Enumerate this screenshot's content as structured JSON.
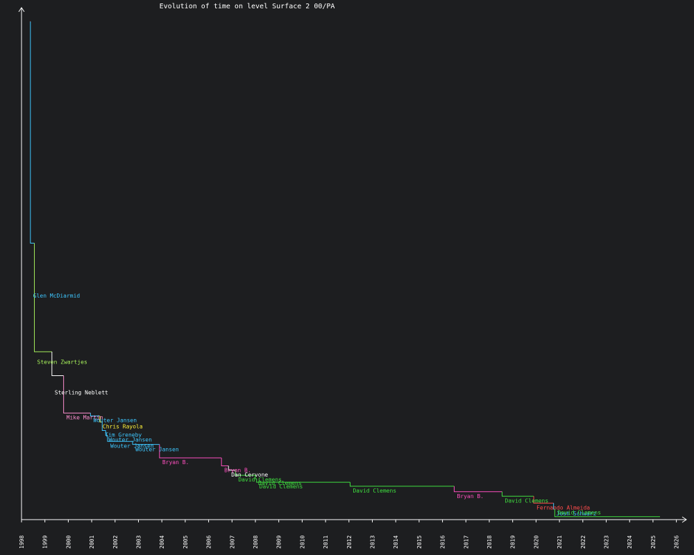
{
  "chart_data": {
    "type": "line",
    "title": "Evolution of time on level Surface 2 00/PA",
    "xlabel": "",
    "ylabel": "",
    "x_axis": {
      "start": 1998,
      "end": 2026,
      "tick_labels": [
        "1998",
        "1999",
        "2000",
        "2001",
        "2002",
        "2003",
        "2004",
        "2005",
        "2006",
        "2007",
        "2008",
        "2009",
        "2010",
        "2011",
        "2012",
        "2013",
        "2014",
        "2015",
        "2016",
        "2017",
        "2018",
        "2019",
        "2020",
        "2021",
        "2022",
        "2023",
        "2024",
        "2025",
        "2026"
      ]
    },
    "y_axis": {
      "tick_labels": [],
      "relative_values": true
    },
    "grid": false,
    "legend": "none",
    "series_end_date": 2025.3,
    "records": [
      {
        "date": 1998.36,
        "holder": "",
        "value": 100.0,
        "color": "#ff4b4b",
        "show_label": false
      },
      {
        "date": 1998.38,
        "holder": "Glen McDiarmid",
        "value": 55.5,
        "color": "#3ec7ff",
        "show_label": true
      },
      {
        "date": 1998.55,
        "holder": "Steven Zwartjes",
        "value": 33.7,
        "color": "#a6f05a",
        "show_label": true
      },
      {
        "date": 1999.3,
        "holder": "Sterling Neblett",
        "value": 28.9,
        "color": "#ffffff",
        "show_label": true
      },
      {
        "date": 1999.8,
        "holder": "Mike Martin",
        "value": 21.4,
        "color": "#ff8ecf",
        "show_label": true
      },
      {
        "date": 2000.95,
        "holder": "Wouter Jansen",
        "value": 20.8,
        "color": "#3ec7ff",
        "show_label": true
      },
      {
        "date": 2001.35,
        "holder": "Chris Rayola",
        "value": 19.6,
        "color": "#fff23a",
        "show_label": true
      },
      {
        "date": 2001.45,
        "holder": "Tim Greneby",
        "value": 17.9,
        "color": "#3ec7ff",
        "show_label": true
      },
      {
        "date": 2001.6,
        "holder": "Wouter Jansen",
        "value": 16.9,
        "color": "#3ec7ff",
        "show_label": true
      },
      {
        "date": 2001.68,
        "holder": "Wouter Jansen",
        "value": 15.7,
        "color": "#3ec7ff",
        "show_label": true
      },
      {
        "date": 2002.75,
        "holder": "Wouter Jansen",
        "value": 15.1,
        "color": "#3ec7ff",
        "show_label": true
      },
      {
        "date": 2003.9,
        "holder": "Bryan B.",
        "value": 12.4,
        "color": "#ff4fbf",
        "show_label": true
      },
      {
        "date": 2006.55,
        "holder": "Bryan B.",
        "value": 10.8,
        "color": "#ff4fbf",
        "show_label": true
      },
      {
        "date": 2006.85,
        "holder": "Dan Cervone",
        "value": 9.9,
        "color": "#ffffff",
        "show_label": true
      },
      {
        "date": 2007.15,
        "holder": "David Clemens",
        "value": 8.9,
        "color": "#3fe03f",
        "show_label": true
      },
      {
        "date": 2008.0,
        "holder": "David Clemens",
        "value": 8.2,
        "color": "#3fe03f",
        "show_label": true
      },
      {
        "date": 2008.05,
        "holder": "David Clemens",
        "value": 7.5,
        "color": "#3fe03f",
        "show_label": true
      },
      {
        "date": 2012.05,
        "holder": "David Clemens",
        "value": 6.7,
        "color": "#3fe03f",
        "show_label": true
      },
      {
        "date": 2016.5,
        "holder": "Bryan B.",
        "value": 5.6,
        "color": "#ff4fbf",
        "show_label": true
      },
      {
        "date": 2018.55,
        "holder": "David Clemens",
        "value": 4.7,
        "color": "#3fe03f",
        "show_label": true
      },
      {
        "date": 2019.9,
        "holder": "Fernando Almeida",
        "value": 3.3,
        "color": "#ff4b4b",
        "show_label": true
      },
      {
        "date": 2020.75,
        "holder": "Josh Schwarz",
        "value": 2.1,
        "color": "#3ec7ff",
        "show_label": true
      },
      {
        "date": 2020.8,
        "holder": "David Clemens",
        "value": 0.6,
        "color": "#3fe03f",
        "show_label": true
      }
    ]
  }
}
